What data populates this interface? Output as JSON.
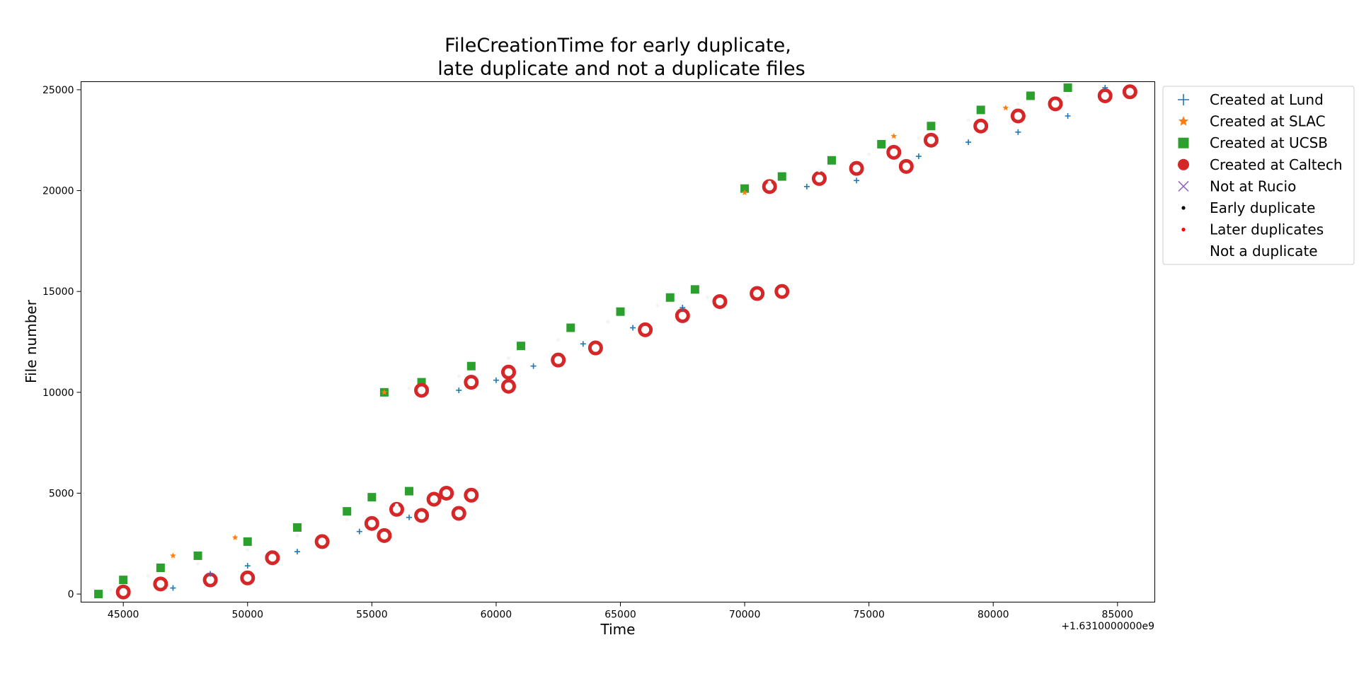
{
  "chart_data": {
    "type": "scatter",
    "title_line1": "FileCreationTime for early duplicate,",
    "title_line2": "late duplicate and not a duplicate files",
    "xlabel": "Time",
    "ylabel": "File number",
    "x_offset_label": "+1.6310000000e9",
    "xlim": [
      43300,
      86500
    ],
    "ylim": [
      -400,
      25400
    ],
    "xticks": [
      45000,
      50000,
      55000,
      60000,
      65000,
      70000,
      75000,
      80000,
      85000
    ],
    "yticks": [
      0,
      5000,
      10000,
      15000,
      20000,
      25000
    ],
    "grid": false,
    "legend_position": "outside-right-top",
    "legend": [
      {
        "label": "Created at Lund",
        "marker": "plus",
        "color": "#1f77b4"
      },
      {
        "label": "Created at SLAC",
        "marker": "star",
        "color": "#ff7f0e"
      },
      {
        "label": "Created at UCSB",
        "marker": "square",
        "color": "#2ca02c"
      },
      {
        "label": "Created at Caltech",
        "marker": "circle",
        "color": "#d62728"
      },
      {
        "label": "Not at Rucio",
        "marker": "x",
        "color": "#9467bd"
      },
      {
        "label": "Early duplicate",
        "marker": "dot",
        "color": "#000000"
      },
      {
        "label": "Later duplicates",
        "marker": "dot",
        "color": "#ff0000"
      },
      {
        "label": "Not a duplicate",
        "marker": "dot",
        "color": "#ffffff"
      }
    ],
    "series": [
      {
        "name": "Created at UCSB",
        "color": "#2ca02c",
        "points": [
          [
            44000,
            0
          ],
          [
            45000,
            700
          ],
          [
            46500,
            1300
          ],
          [
            48000,
            1900
          ],
          [
            50000,
            2600
          ],
          [
            52000,
            3300
          ],
          [
            54000,
            4100
          ],
          [
            55000,
            4800
          ],
          [
            56500,
            5100
          ],
          [
            55500,
            10000
          ],
          [
            57000,
            10500
          ],
          [
            59000,
            11300
          ],
          [
            61000,
            12300
          ],
          [
            63000,
            13200
          ],
          [
            65000,
            14000
          ],
          [
            67000,
            14700
          ],
          [
            68000,
            15100
          ],
          [
            70000,
            20100
          ],
          [
            71500,
            20700
          ],
          [
            73500,
            21500
          ],
          [
            75500,
            22300
          ],
          [
            77500,
            23200
          ],
          [
            79500,
            24000
          ],
          [
            81500,
            24700
          ],
          [
            83000,
            25100
          ]
        ]
      },
      {
        "name": "Created at Caltech",
        "color": "#d62728",
        "points": [
          [
            45000,
            100
          ],
          [
            46500,
            500
          ],
          [
            48500,
            700
          ],
          [
            50000,
            800
          ],
          [
            51000,
            1800
          ],
          [
            53000,
            2600
          ],
          [
            55000,
            3500
          ],
          [
            56000,
            4200
          ],
          [
            57500,
            4700
          ],
          [
            58000,
            5000
          ],
          [
            59000,
            4900
          ],
          [
            57000,
            3900
          ],
          [
            58500,
            4000
          ],
          [
            55500,
            2900
          ],
          [
            57000,
            10100
          ],
          [
            59000,
            10500
          ],
          [
            60500,
            11000
          ],
          [
            62500,
            11600
          ],
          [
            64000,
            12200
          ],
          [
            66000,
            13100
          ],
          [
            67500,
            13800
          ],
          [
            69000,
            14500
          ],
          [
            70500,
            14900
          ],
          [
            71500,
            15000
          ],
          [
            60500,
            10300
          ],
          [
            71000,
            20200
          ],
          [
            73000,
            20600
          ],
          [
            74500,
            21100
          ],
          [
            76000,
            21900
          ],
          [
            77500,
            22500
          ],
          [
            79500,
            23200
          ],
          [
            81000,
            23700
          ],
          [
            82500,
            24300
          ],
          [
            84500,
            24700
          ],
          [
            85500,
            24900
          ],
          [
            76500,
            21200
          ]
        ]
      },
      {
        "name": "Created at Lund",
        "color": "#1f77b4",
        "points": [
          [
            47000,
            300
          ],
          [
            48500,
            1000
          ],
          [
            50000,
            1400
          ],
          [
            52000,
            2100
          ],
          [
            54500,
            3100
          ],
          [
            56500,
            3800
          ],
          [
            58500,
            10100
          ],
          [
            60000,
            10600
          ],
          [
            61500,
            11300
          ],
          [
            63500,
            12400
          ],
          [
            65500,
            13200
          ],
          [
            67500,
            14200
          ],
          [
            72500,
            20200
          ],
          [
            74500,
            20500
          ],
          [
            77000,
            21700
          ],
          [
            79000,
            22400
          ],
          [
            81000,
            22900
          ],
          [
            83000,
            23700
          ],
          [
            84500,
            25100
          ]
        ]
      },
      {
        "name": "Created at SLAC",
        "color": "#ff7f0e",
        "points": [
          [
            47000,
            1900
          ],
          [
            49500,
            2800
          ],
          [
            55500,
            10000
          ],
          [
            70000,
            19900
          ],
          [
            76000,
            22700
          ],
          [
            80500,
            24100
          ]
        ]
      },
      {
        "name": "Not a duplicate",
        "color": "#ffffff",
        "points": [
          [
            44500,
            200
          ],
          [
            46000,
            900
          ],
          [
            48000,
            1500
          ],
          [
            50000,
            2200
          ],
          [
            52000,
            2900
          ],
          [
            54000,
            3700
          ],
          [
            56000,
            4400
          ],
          [
            57500,
            4600
          ],
          [
            56500,
            10200
          ],
          [
            58500,
            10800
          ],
          [
            60500,
            11700
          ],
          [
            62500,
            12600
          ],
          [
            64500,
            13500
          ],
          [
            66500,
            14300
          ],
          [
            68500,
            14700
          ],
          [
            71000,
            20400
          ],
          [
            73000,
            21000
          ],
          [
            75000,
            21800
          ],
          [
            77000,
            22600
          ],
          [
            79000,
            23500
          ],
          [
            81000,
            24300
          ],
          [
            83000,
            24700
          ],
          [
            85500,
            24800
          ]
        ]
      }
    ]
  }
}
